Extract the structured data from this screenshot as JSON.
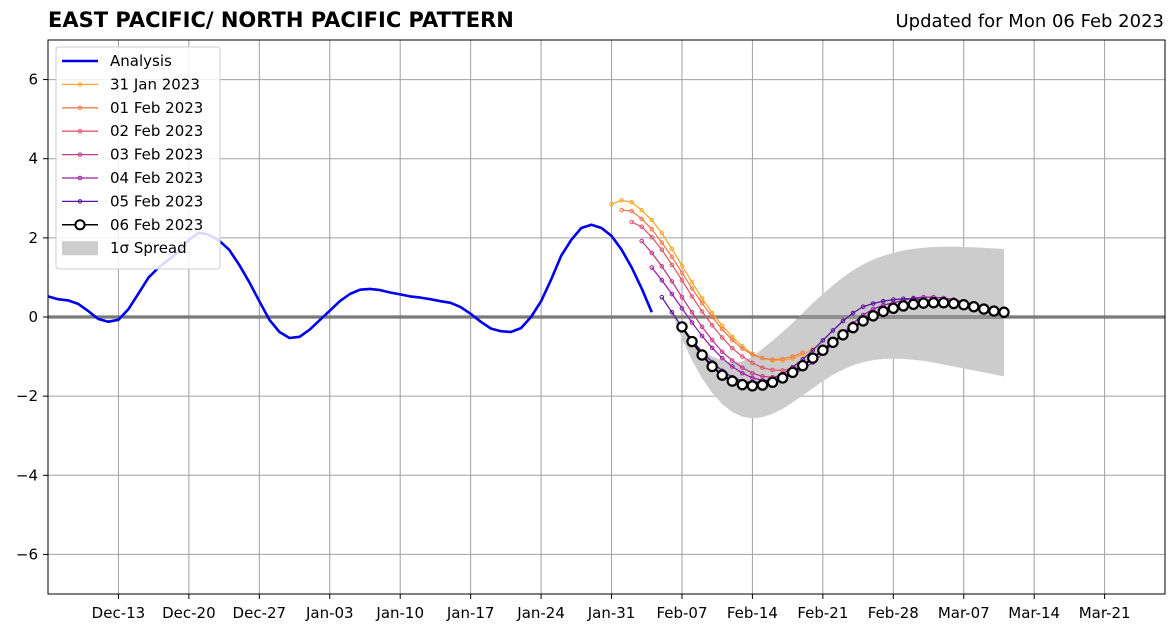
{
  "chart_data": {
    "type": "line",
    "title": "EAST PACIFIC/ NORTH PACIFIC PATTERN",
    "subtitle": "Updated for Mon 06 Feb 2023",
    "xlabel": "",
    "ylabel": "",
    "x_axis": {
      "type": "date",
      "range": [
        "2022-12-06",
        "2023-03-27"
      ],
      "ticks": [
        "2022-12-13",
        "2022-12-20",
        "2022-12-27",
        "2023-01-03",
        "2023-01-10",
        "2023-01-17",
        "2023-01-24",
        "2023-01-31",
        "2023-02-07",
        "2023-02-14",
        "2023-02-21",
        "2023-02-28",
        "2023-03-07",
        "2023-03-14",
        "2023-03-21"
      ],
      "tick_labels": [
        "Dec-13",
        "Dec-20",
        "Dec-27",
        "Jan-03",
        "Jan-10",
        "Jan-17",
        "Jan-24",
        "Jan-31",
        "Feb-07",
        "Feb-14",
        "Feb-21",
        "Feb-28",
        "Mar-07",
        "Mar-14",
        "Mar-21"
      ]
    },
    "y_axis": {
      "range": [
        -7,
        7
      ],
      "ticks": [
        -6,
        -4,
        -2,
        0,
        2,
        4,
        6
      ],
      "tick_labels": [
        "−6",
        "−4",
        "−2",
        "0",
        "2",
        "4",
        "6"
      ]
    },
    "grid": true,
    "zero_line": true,
    "legend": {
      "placement": "top-left",
      "entries": [
        "Analysis",
        "31 Jan 2023",
        "01 Feb 2023",
        "02 Feb 2023",
        "03 Feb 2023",
        "04 Feb 2023",
        "05 Feb 2023",
        "06 Feb 2023",
        "1σ Spread"
      ]
    },
    "analysis": {
      "name": "Analysis",
      "color": "#0000ee",
      "start": "2022-12-06",
      "values": [
        0.52,
        0.45,
        0.42,
        0.33,
        0.15,
        -0.05,
        -0.12,
        -0.07,
        0.2,
        0.6,
        1.0,
        1.25,
        1.45,
        1.65,
        1.95,
        2.13,
        2.08,
        1.93,
        1.7,
        1.32,
        0.88,
        0.4,
        -0.07,
        -0.38,
        -0.53,
        -0.5,
        -0.32,
        -0.08,
        0.16,
        0.4,
        0.58,
        0.69,
        0.71,
        0.68,
        0.62,
        0.57,
        0.52,
        0.49,
        0.45,
        0.4,
        0.36,
        0.25,
        0.08,
        -0.12,
        -0.29,
        -0.36,
        -0.38,
        -0.28,
        0.0,
        0.4,
        0.95,
        1.55,
        1.95,
        2.25,
        2.33,
        2.25,
        2.05,
        1.7,
        1.25,
        0.72,
        0.12
      ]
    },
    "forecasts": [
      {
        "name": "31 Jan 2023",
        "color": "#f9a92e",
        "start": "2023-01-31",
        "values": [
          2.85,
          2.95,
          2.9,
          2.7,
          2.45,
          2.12,
          1.72,
          1.3,
          0.88,
          0.47,
          0.1,
          -0.22,
          -0.5,
          -0.74,
          -0.93,
          -1.04,
          -1.1,
          -1.1,
          -1.05,
          -0.95,
          -0.8
        ]
      },
      {
        "name": "01 Feb 2023",
        "color": "#ef7f4c",
        "start": "2023-02-01",
        "values": [
          2.7,
          2.68,
          2.48,
          2.22,
          1.88,
          1.52,
          1.12,
          0.72,
          0.35,
          0.0,
          -0.31,
          -0.58,
          -0.8,
          -0.95,
          -1.04,
          -1.08,
          -1.06,
          -1.0,
          -0.9
        ]
      },
      {
        "name": "02 Feb 2023",
        "color": "#e05a6e",
        "start": "2023-02-02",
        "values": [
          2.4,
          2.28,
          2.02,
          1.7,
          1.32,
          0.93,
          0.52,
          0.14,
          -0.21,
          -0.52,
          -0.79,
          -1.0,
          -1.16,
          -1.28,
          -1.34,
          -1.35,
          -1.3,
          -1.2
        ]
      },
      {
        "name": "03 Feb 2023",
        "color": "#c23a8a",
        "start": "2023-02-03",
        "values": [
          1.92,
          1.62,
          1.28,
          0.9,
          0.5,
          0.12,
          -0.25,
          -0.58,
          -0.88,
          -1.1,
          -1.28,
          -1.42,
          -1.5,
          -1.52,
          -1.48,
          -1.4,
          -1.28
        ]
      },
      {
        "name": "04 Feb 2023",
        "color": "#9a1fa8",
        "start": "2023-02-04",
        "values": [
          1.25,
          0.93,
          0.58,
          0.22,
          -0.14,
          -0.48,
          -0.78,
          -1.04,
          -1.25,
          -1.42,
          -1.54,
          -1.6,
          -1.6,
          -1.55,
          -1.45,
          -1.32,
          -1.15,
          -0.92,
          -0.68,
          -0.42,
          -0.16,
          0.05,
          0.2,
          0.3,
          0.36,
          0.42,
          0.48,
          0.5,
          0.5,
          0.48,
          0.44,
          0.38
        ]
      },
      {
        "name": "05 Feb 2023",
        "color": "#5b1599",
        "start": "2023-02-05",
        "values": [
          0.5,
          0.12,
          -0.25,
          -0.58,
          -0.88,
          -1.14,
          -1.36,
          -1.52,
          -1.62,
          -1.66,
          -1.64,
          -1.56,
          -1.44,
          -1.27,
          -1.07,
          -0.84,
          -0.59,
          -0.34,
          -0.1,
          0.1,
          0.26,
          0.34,
          0.4,
          0.44,
          0.46,
          0.46,
          0.44,
          0.4,
          0.35
        ]
      },
      {
        "name": "06 Feb 2023",
        "color": "#000000",
        "start": "2023-02-07",
        "values": [
          -0.25,
          -0.62,
          -0.96,
          -1.25,
          -1.47,
          -1.62,
          -1.71,
          -1.74,
          -1.72,
          -1.65,
          -1.54,
          -1.4,
          -1.23,
          -1.04,
          -0.84,
          -0.64,
          -0.45,
          -0.27,
          -0.1,
          0.03,
          0.14,
          0.22,
          0.28,
          0.32,
          0.35,
          0.36,
          0.36,
          0.34,
          0.31,
          0.26,
          0.2,
          0.15,
          0.12
        ]
      }
    ],
    "spread": {
      "name": "1σ Spread",
      "color": "#cccccc",
      "start": "2023-02-06",
      "upper": [
        0.12,
        -0.3,
        -0.62,
        -0.85,
        -1.0,
        -1.1,
        -1.15,
        -1.12,
        -1.0,
        -0.8,
        -0.6,
        -0.38,
        -0.15,
        0.1,
        0.35,
        0.58,
        0.8,
        1.0,
        1.18,
        1.33,
        1.45,
        1.55,
        1.62,
        1.68,
        1.72,
        1.75,
        1.77,
        1.78,
        1.78,
        1.77,
        1.76,
        1.75,
        1.73,
        1.72
      ],
      "lower": [
        0.12,
        -0.55,
        -1.1,
        -1.55,
        -1.92,
        -2.2,
        -2.4,
        -2.52,
        -2.56,
        -2.53,
        -2.45,
        -2.32,
        -2.16,
        -1.98,
        -1.8,
        -1.62,
        -1.46,
        -1.33,
        -1.22,
        -1.14,
        -1.09,
        -1.06,
        -1.05,
        -1.06,
        -1.08,
        -1.11,
        -1.15,
        -1.2,
        -1.25,
        -1.3,
        -1.35,
        -1.4,
        -1.45,
        -1.5
      ]
    }
  }
}
